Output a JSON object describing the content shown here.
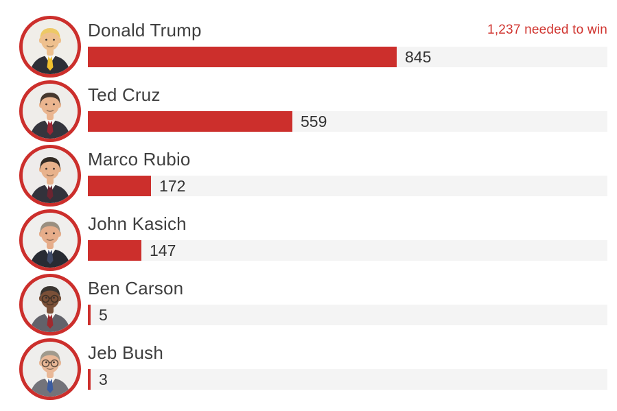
{
  "header": {
    "needed_label": "1,237 needed to win"
  },
  "chart_data": {
    "type": "bar",
    "orientation": "horizontal",
    "categories": [
      "Donald Trump",
      "Ted Cruz",
      "Marco Rubio",
      "John Kasich",
      "Ben Carson",
      "Jeb Bush"
    ],
    "values": [
      845,
      559,
      172,
      147,
      5,
      3
    ],
    "annotations": [
      "1,237 needed to win"
    ],
    "needed_to_win": 1237,
    "xlim": [
      0,
      1421
    ],
    "grid": false,
    "legend": false,
    "bar_color": "#cc2f2c",
    "track_color": "#f4f4f4",
    "value_labels": [
      "845",
      "559",
      "172",
      "147",
      "5",
      "3"
    ]
  },
  "candidates": [
    {
      "name": "Donald Trump",
      "delegates": 845,
      "delegates_label": "845",
      "avatar": {
        "bg": "#f0eee9",
        "skin": "#eec08e",
        "hair": "#edc967",
        "suit": "#2e2e36",
        "tie": "#f2c12e",
        "glasses": false
      }
    },
    {
      "name": "Ted Cruz",
      "delegates": 559,
      "delegates_label": "559",
      "avatar": {
        "bg": "#efedea",
        "skin": "#eab58f",
        "hair": "#46382e",
        "suit": "#35353d",
        "tie": "#9c2433",
        "glasses": false
      }
    },
    {
      "name": "Marco Rubio",
      "delegates": 172,
      "delegates_label": "172",
      "avatar": {
        "bg": "#eeeceb",
        "skin": "#e8b28c",
        "hair": "#332b25",
        "suit": "#32323b",
        "tie": "#6b2430",
        "glasses": false
      }
    },
    {
      "name": "John Kasich",
      "delegates": 147,
      "delegates_label": "147",
      "avatar": {
        "bg": "#f0efed",
        "skin": "#e6ad8a",
        "hair": "#9a8f80",
        "suit": "#282b33",
        "tie": "#3e4a67",
        "glasses": false
      }
    },
    {
      "name": "Ben Carson",
      "delegates": 5,
      "delegates_label": "5",
      "avatar": {
        "bg": "#eeedec",
        "skin": "#7a5038",
        "hair": "#3a3531",
        "suit": "#62626a",
        "tie": "#a02a2e",
        "glasses": true
      }
    },
    {
      "name": "Jeb Bush",
      "delegates": 3,
      "delegates_label": "3",
      "avatar": {
        "bg": "#efeeec",
        "skin": "#e9b897",
        "hair": "#a09a8d",
        "suit": "#73737a",
        "tie": "#3c5da0",
        "glasses": true
      }
    }
  ]
}
